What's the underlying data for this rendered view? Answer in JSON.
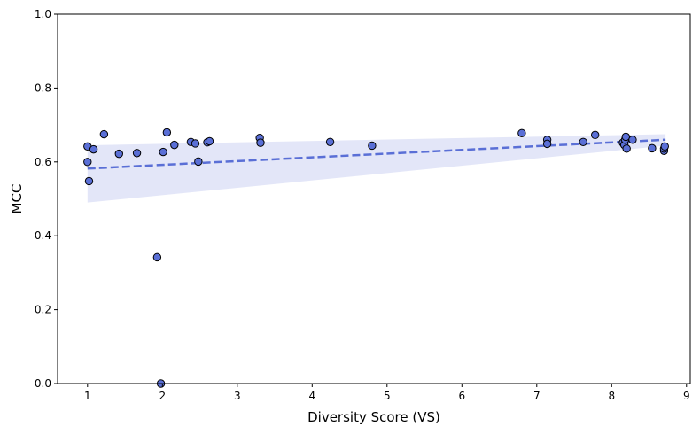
{
  "chart_data": {
    "type": "scatter",
    "title": "",
    "xlabel": "Diversity Score (VS)",
    "ylabel": "MCC",
    "xlim": [
      0.6,
      9.05
    ],
    "ylim": [
      0.0,
      1.0
    ],
    "xticks": [
      "1",
      "2",
      "3",
      "4",
      "5",
      "6",
      "7",
      "8",
      "9"
    ],
    "yticks": [
      "0.0",
      "0.2",
      "0.4",
      "0.6",
      "0.8",
      "1.0"
    ],
    "grid": false,
    "legend": "none",
    "colors": {
      "points": "#5a6fd6",
      "point_edge": "#000000",
      "trend": "#5a6fd6",
      "band": "#c8cdf2"
    },
    "points": [
      {
        "x": 1.0,
        "y": 0.642
      },
      {
        "x": 1.0,
        "y": 0.6
      },
      {
        "x": 1.02,
        "y": 0.548
      },
      {
        "x": 1.08,
        "y": 0.634
      },
      {
        "x": 1.22,
        "y": 0.675
      },
      {
        "x": 1.42,
        "y": 0.622
      },
      {
        "x": 1.66,
        "y": 0.624
      },
      {
        "x": 1.93,
        "y": 0.342
      },
      {
        "x": 1.98,
        "y": 0.0
      },
      {
        "x": 2.01,
        "y": 0.627
      },
      {
        "x": 2.06,
        "y": 0.68
      },
      {
        "x": 2.16,
        "y": 0.646
      },
      {
        "x": 2.38,
        "y": 0.654
      },
      {
        "x": 2.44,
        "y": 0.65
      },
      {
        "x": 2.48,
        "y": 0.601
      },
      {
        "x": 2.6,
        "y": 0.653
      },
      {
        "x": 2.63,
        "y": 0.656
      },
      {
        "x": 3.3,
        "y": 0.665
      },
      {
        "x": 3.31,
        "y": 0.652
      },
      {
        "x": 4.24,
        "y": 0.654
      },
      {
        "x": 4.8,
        "y": 0.644
      },
      {
        "x": 6.8,
        "y": 0.678
      },
      {
        "x": 7.14,
        "y": 0.66
      },
      {
        "x": 7.14,
        "y": 0.649
      },
      {
        "x": 7.62,
        "y": 0.654
      },
      {
        "x": 7.78,
        "y": 0.673
      },
      {
        "x": 8.15,
        "y": 0.652
      },
      {
        "x": 8.17,
        "y": 0.646
      },
      {
        "x": 8.18,
        "y": 0.66
      },
      {
        "x": 8.19,
        "y": 0.668
      },
      {
        "x": 8.2,
        "y": 0.636
      },
      {
        "x": 8.28,
        "y": 0.66
      },
      {
        "x": 8.54,
        "y": 0.637
      },
      {
        "x": 8.7,
        "y": 0.63
      },
      {
        "x": 8.7,
        "y": 0.636
      },
      {
        "x": 8.71,
        "y": 0.642
      }
    ],
    "trend_line": {
      "x": [
        1.0,
        8.72
      ],
      "y": [
        0.582,
        0.66
      ],
      "style": "dashed"
    },
    "confidence_band": {
      "x": [
        1.0,
        8.72
      ],
      "upper": [
        0.645,
        0.675
      ],
      "lower": [
        0.49,
        0.644
      ]
    }
  }
}
